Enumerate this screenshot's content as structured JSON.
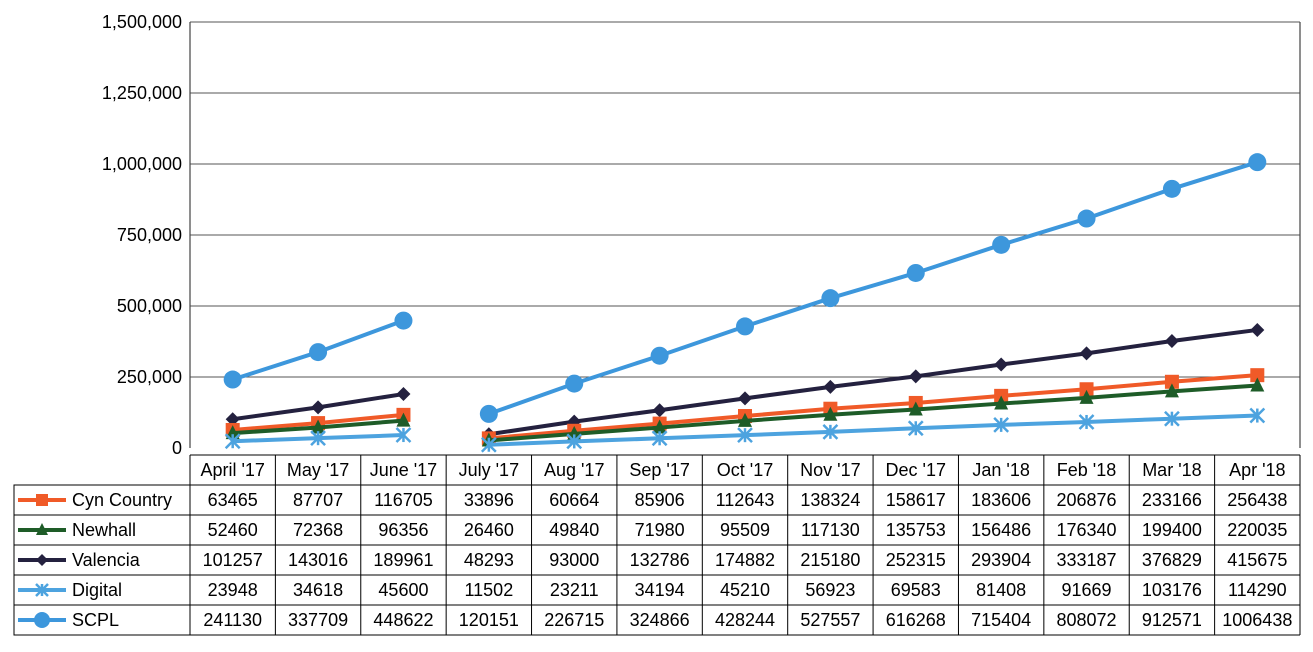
{
  "chart_data": {
    "type": "line",
    "ylim": [
      0,
      1500000
    ],
    "yticks": [
      "0",
      "250,000",
      "500,000",
      "750,000",
      "1,000,000",
      "1,250,000",
      "1,500,000"
    ],
    "categories": [
      "April '17",
      "May '17",
      "June '17",
      "July '17",
      "Aug '17",
      "Sep '17",
      "Oct '17",
      "Nov '17",
      "Dec '17",
      "Jan '18",
      "Feb '18",
      "Mar '18",
      "Apr '18"
    ],
    "gap_after_index": 2,
    "grid": true,
    "legend": "data-table-left",
    "series": [
      {
        "name": "Cyn Country",
        "color": "#F05A28",
        "marker": "square",
        "values": [
          63465,
          87707,
          116705,
          33896,
          60664,
          85906,
          112643,
          138324,
          158617,
          183606,
          206876,
          233166,
          256438
        ]
      },
      {
        "name": "Newhall",
        "color": "#1E5C28",
        "marker": "triangle",
        "values": [
          52460,
          72368,
          96356,
          26460,
          49840,
          71980,
          95509,
          117130,
          135753,
          156486,
          176340,
          199400,
          220035
        ]
      },
      {
        "name": "Valencia",
        "color": "#24213F",
        "marker": "diamond",
        "values": [
          101257,
          143016,
          189961,
          48293,
          93000,
          132786,
          174882,
          215180,
          252315,
          293904,
          333187,
          376829,
          415675
        ]
      },
      {
        "name": "Digital",
        "color": "#4DA3DF",
        "marker": "star",
        "values": [
          23948,
          34618,
          45600,
          11502,
          23211,
          34194,
          45210,
          56923,
          69583,
          81408,
          91669,
          103176,
          114290
        ]
      },
      {
        "name": "SCPL",
        "color": "#3D97DC",
        "marker": "circle",
        "values": [
          241130,
          337709,
          448622,
          120151,
          226715,
          324866,
          428244,
          527557,
          616268,
          715404,
          808072,
          912571,
          1006438
        ]
      }
    ]
  }
}
